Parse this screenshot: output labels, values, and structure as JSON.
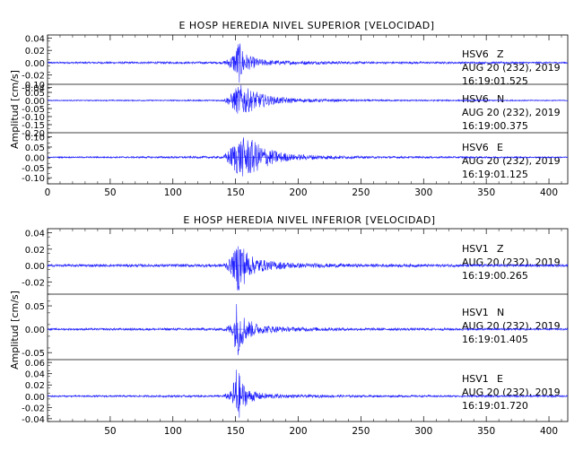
{
  "colors": {
    "trace": "#1a1aff",
    "frame": "#000000",
    "text": "#000000"
  },
  "chart_data": [
    {
      "type": "line",
      "title": "E HOSP HEREDIA NIVEL SUPERIOR [VELOCIDAD]",
      "ylabel": "Amplitud [cm/s]",
      "xlim": [
        0,
        415
      ],
      "x_ticks": [
        "0",
        "50",
        "100",
        "150",
        "200",
        "250",
        "300",
        "350",
        "400"
      ],
      "grid": false,
      "traces": [
        {
          "station": "HSV6",
          "component": "Z",
          "date": "AUG 20 (232), 2019",
          "time": "16:19:01.525",
          "ylim": [
            -0.035,
            0.045
          ],
          "yticks": [
            "0.04",
            "0.02",
            "0.00",
            "-0.02",
            "-0.04"
          ],
          "peak": 0.038,
          "envelope": [
            [
              0,
              0.0015
            ],
            [
              140,
              0.002
            ],
            [
              145,
              0.008
            ],
            [
              150,
              0.02
            ],
            [
              152,
              0.038
            ],
            [
              155,
              0.025
            ],
            [
              160,
              0.012
            ],
            [
              170,
              0.006
            ],
            [
              180,
              0.004
            ],
            [
              200,
              0.003
            ],
            [
              250,
              0.002
            ],
            [
              415,
              0.0015
            ]
          ]
        },
        {
          "station": "HSV6",
          "component": "N",
          "date": "AUG 20 (232), 2019",
          "time": "16:19:00.375",
          "ylim": [
            -0.2,
            0.1
          ],
          "yticks": [
            "0.10",
            "0.05",
            "0.00",
            "-0.05",
            "-0.10",
            "-0.15",
            "-0.20"
          ],
          "peak": 0.1,
          "envelope": [
            [
              0,
              0.003
            ],
            [
              140,
              0.005
            ],
            [
              145,
              0.03
            ],
            [
              150,
              0.08
            ],
            [
              155,
              0.1
            ],
            [
              160,
              0.075
            ],
            [
              170,
              0.045
            ],
            [
              180,
              0.025
            ],
            [
              200,
              0.012
            ],
            [
              250,
              0.006
            ],
            [
              415,
              0.003
            ]
          ]
        },
        {
          "station": "HSV6",
          "component": "E",
          "date": "AUG 20 (232), 2019",
          "time": "16:19:01.125",
          "ylim": [
            -0.13,
            0.12
          ],
          "yticks": [
            "0.10",
            "0.05",
            "0.00",
            "-0.05",
            "-0.10"
          ],
          "peak": 0.1,
          "envelope": [
            [
              0,
              0.003
            ],
            [
              140,
              0.006
            ],
            [
              145,
              0.04
            ],
            [
              150,
              0.08
            ],
            [
              155,
              0.1
            ],
            [
              162,
              0.09
            ],
            [
              170,
              0.06
            ],
            [
              180,
              0.035
            ],
            [
              195,
              0.015
            ],
            [
              250,
              0.006
            ],
            [
              415,
              0.003
            ]
          ]
        }
      ]
    },
    {
      "type": "line",
      "title": "E HOSP HEREDIA NIVEL INFERIOR [VELOCIDAD]",
      "ylabel": "Amplitud [cm/s]",
      "xlim": [
        0,
        415
      ],
      "x_ticks": [
        "",
        "50",
        "100",
        "150",
        "200",
        "250",
        "300",
        "350",
        "400"
      ],
      "grid": false,
      "traces": [
        {
          "station": "HSV1",
          "component": "Z",
          "date": "AUG 20 (232), 2019",
          "time": "16:19:00.265",
          "ylim": [
            -0.035,
            0.045
          ],
          "yticks": [
            "0.04",
            "0.02",
            "0.00",
            "-0.02"
          ],
          "peak": 0.04,
          "envelope": [
            [
              0,
              0.0015
            ],
            [
              140,
              0.002
            ],
            [
              145,
              0.008
            ],
            [
              150,
              0.02
            ],
            [
              153,
              0.04
            ],
            [
              156,
              0.025
            ],
            [
              162,
              0.012
            ],
            [
              175,
              0.006
            ],
            [
              200,
              0.003
            ],
            [
              250,
              0.002
            ],
            [
              415,
              0.0015
            ]
          ]
        },
        {
          "station": "HSV1",
          "component": "N",
          "date": "AUG 20 (232), 2019",
          "time": "16:19:01.405",
          "ylim": [
            -0.065,
            0.075
          ],
          "yticks": [
            "0.05",
            "0.00",
            "-0.05"
          ],
          "peak": 0.065,
          "envelope": [
            [
              0,
              0.002
            ],
            [
              140,
              0.003
            ],
            [
              148,
              0.015
            ],
            [
              151,
              0.065
            ],
            [
              154,
              0.04
            ],
            [
              160,
              0.02
            ],
            [
              170,
              0.01
            ],
            [
              190,
              0.005
            ],
            [
              250,
              0.003
            ],
            [
              415,
              0.002
            ]
          ]
        },
        {
          "station": "HSV1",
          "component": "E",
          "date": "AUG 20 (232), 2019",
          "time": "16:19:01.720",
          "ylim": [
            -0.045,
            0.065
          ],
          "yticks": [
            "0.06",
            "0.04",
            "0.02",
            "0.00",
            "-0.02",
            "-0.04"
          ],
          "peak": 0.06,
          "envelope": [
            [
              0,
              0.0015
            ],
            [
              140,
              0.002
            ],
            [
              147,
              0.01
            ],
            [
              151,
              0.06
            ],
            [
              154,
              0.03
            ],
            [
              160,
              0.012
            ],
            [
              170,
              0.006
            ],
            [
              190,
              0.003
            ],
            [
              250,
              0.002
            ],
            [
              415,
              0.0015
            ]
          ]
        }
      ]
    }
  ]
}
